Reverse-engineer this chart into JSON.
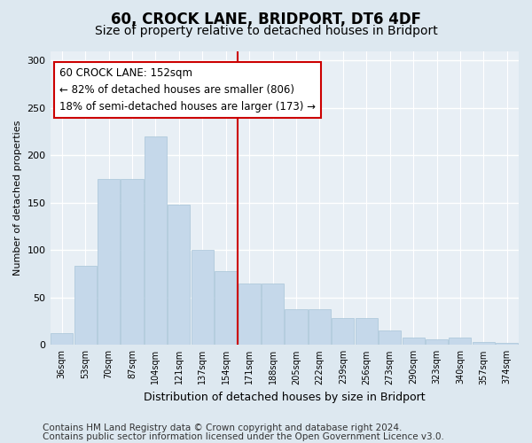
{
  "title": "60, CROCK LANE, BRIDPORT, DT6 4DF",
  "subtitle": "Size of property relative to detached houses in Bridport",
  "xlabel": "Distribution of detached houses by size in Bridport",
  "ylabel": "Number of detached properties",
  "bin_labels": [
    "36sqm",
    "53sqm",
    "70sqm",
    "87sqm",
    "104sqm",
    "121sqm",
    "137sqm",
    "154sqm",
    "171sqm",
    "188sqm",
    "205sqm",
    "222sqm",
    "239sqm",
    "256sqm",
    "273sqm",
    "290sqm",
    "323sqm",
    "340sqm",
    "357sqm",
    "374sqm"
  ],
  "bar_heights": [
    12,
    83,
    175,
    175,
    220,
    148,
    100,
    78,
    65,
    65,
    38,
    38,
    28,
    28,
    15,
    8,
    6,
    8,
    3,
    2
  ],
  "bar_color": "#c5d8ea",
  "bar_edge_color": "#a8c4d8",
  "vline_color": "#cc0000",
  "annotation_text": "60 CROCK LANE: 152sqm\n← 82% of detached houses are smaller (806)\n18% of semi-detached houses are larger (173) →",
  "annotation_box_color": "#ffffff",
  "annotation_box_edge_color": "#cc0000",
  "ylim": [
    0,
    310
  ],
  "yticks": [
    0,
    50,
    100,
    150,
    200,
    250,
    300
  ],
  "footer1": "Contains HM Land Registry data © Crown copyright and database right 2024.",
  "footer2": "Contains public sector information licensed under the Open Government Licence v3.0.",
  "bg_color": "#dde8f0",
  "plot_bg_color": "#e8eff5",
  "title_fontsize": 12,
  "subtitle_fontsize": 10,
  "annotation_fontsize": 8.5,
  "footer_fontsize": 7.5,
  "ylabel_fontsize": 8,
  "xlabel_fontsize": 9
}
